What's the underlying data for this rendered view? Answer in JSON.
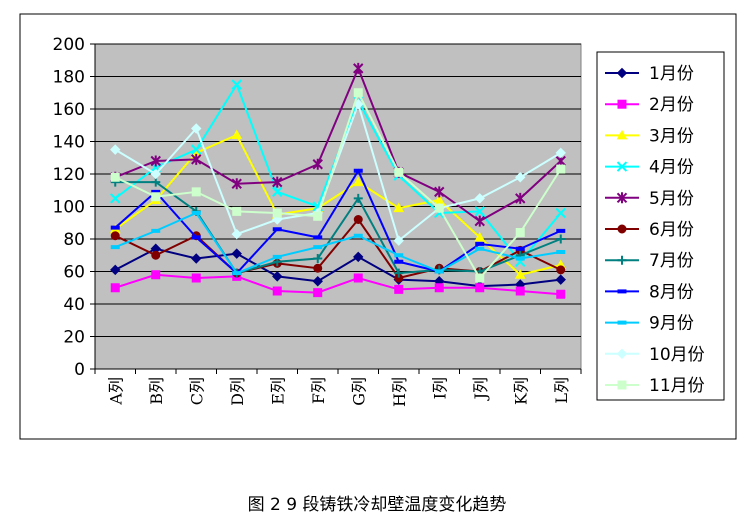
{
  "caption": "图 2   9 段铸铁冷却壁温度变化趋势",
  "chart_data": {
    "type": "line",
    "categories": [
      "A列",
      "B列",
      "C列",
      "D列",
      "E列",
      "F列",
      "G列",
      "H列",
      "I列",
      "J列",
      "K列",
      "L列"
    ],
    "ylim": [
      0,
      200
    ],
    "yticks": [
      0,
      20,
      40,
      60,
      80,
      100,
      120,
      140,
      160,
      180,
      200
    ],
    "grid": true,
    "legend_position": "right",
    "plot_background": "#c0c0c0",
    "series": [
      {
        "name": "1月份",
        "color": "#000080",
        "marker": "diamond",
        "values": [
          61,
          74,
          68,
          71,
          57,
          54,
          69,
          55,
          54,
          51,
          52,
          55
        ]
      },
      {
        "name": "2月份",
        "color": "#ff00ff",
        "marker": "square",
        "values": [
          50,
          58,
          56,
          57,
          48,
          47,
          56,
          49,
          50,
          50,
          48,
          46
        ]
      },
      {
        "name": "3月份",
        "color": "#ffff00",
        "marker": "triangle",
        "values": [
          86,
          104,
          133,
          144,
          95,
          99,
          115,
          99,
          104,
          81,
          58,
          64
        ]
      },
      {
        "name": "4月份",
        "color": "#00ffff",
        "marker": "x",
        "values": [
          105,
          124,
          135,
          175,
          109,
          100,
          165,
          119,
          96,
          97,
          66,
          96
        ]
      },
      {
        "name": "5月份",
        "color": "#800080",
        "marker": "star",
        "values": [
          118,
          128,
          129,
          114,
          115,
          126,
          185,
          121,
          109,
          91,
          105,
          128
        ]
      },
      {
        "name": "6月份",
        "color": "#800000",
        "marker": "circle",
        "values": [
          82,
          70,
          82,
          59,
          65,
          62,
          92,
          56,
          62,
          60,
          73,
          61
        ]
      },
      {
        "name": "7月份",
        "color": "#008080",
        "marker": "plus",
        "values": [
          115,
          115,
          97,
          59,
          66,
          68,
          105,
          59,
          61,
          60,
          70,
          80
        ]
      },
      {
        "name": "8月份",
        "color": "#0000ff",
        "marker": "dash",
        "values": [
          87,
          109,
          81,
          59,
          86,
          81,
          122,
          66,
          60,
          77,
          74,
          85
        ]
      },
      {
        "name": "9月份",
        "color": "#00ccff",
        "marker": "dash",
        "values": [
          75,
          85,
          96,
          59,
          69,
          75,
          82,
          70,
          60,
          74,
          68,
          72
        ]
      },
      {
        "name": "10月份",
        "color": "#ccffff",
        "marker": "diamond",
        "values": [
          135,
          120,
          148,
          83,
          92,
          96,
          163,
          79,
          99,
          105,
          118,
          133
        ]
      },
      {
        "name": "11月份",
        "color": "#ccffcc",
        "marker": "square",
        "values": [
          118,
          106,
          109,
          97,
          96,
          94,
          170,
          121,
          99,
          56,
          84,
          123
        ]
      }
    ]
  }
}
